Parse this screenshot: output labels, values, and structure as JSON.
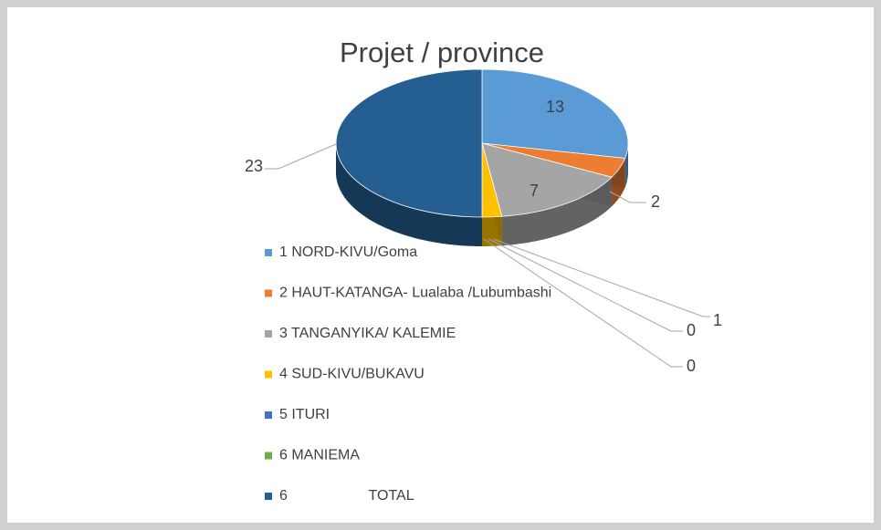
{
  "chart_data": {
    "type": "pie3d",
    "title": "Projet / province",
    "categories": [
      "1 NORD-KIVU/Goma",
      "2 HAUT-KATANGA- Lualaba /Lubumbashi",
      "3 TANGANYIKA/ KALEMIE",
      "4 SUD-KIVU/BUKAVU",
      "5 ITURI",
      "6 MANIEMA",
      "6                    TOTAL"
    ],
    "values": [
      13,
      2,
      7,
      1,
      0,
      0,
      23
    ],
    "colors": [
      "#5b9bd5",
      "#ed7d31",
      "#a5a5a5",
      "#ffc000",
      "#4472c4",
      "#70ad47",
      "#255e91"
    ],
    "legend": "bottom-left"
  }
}
